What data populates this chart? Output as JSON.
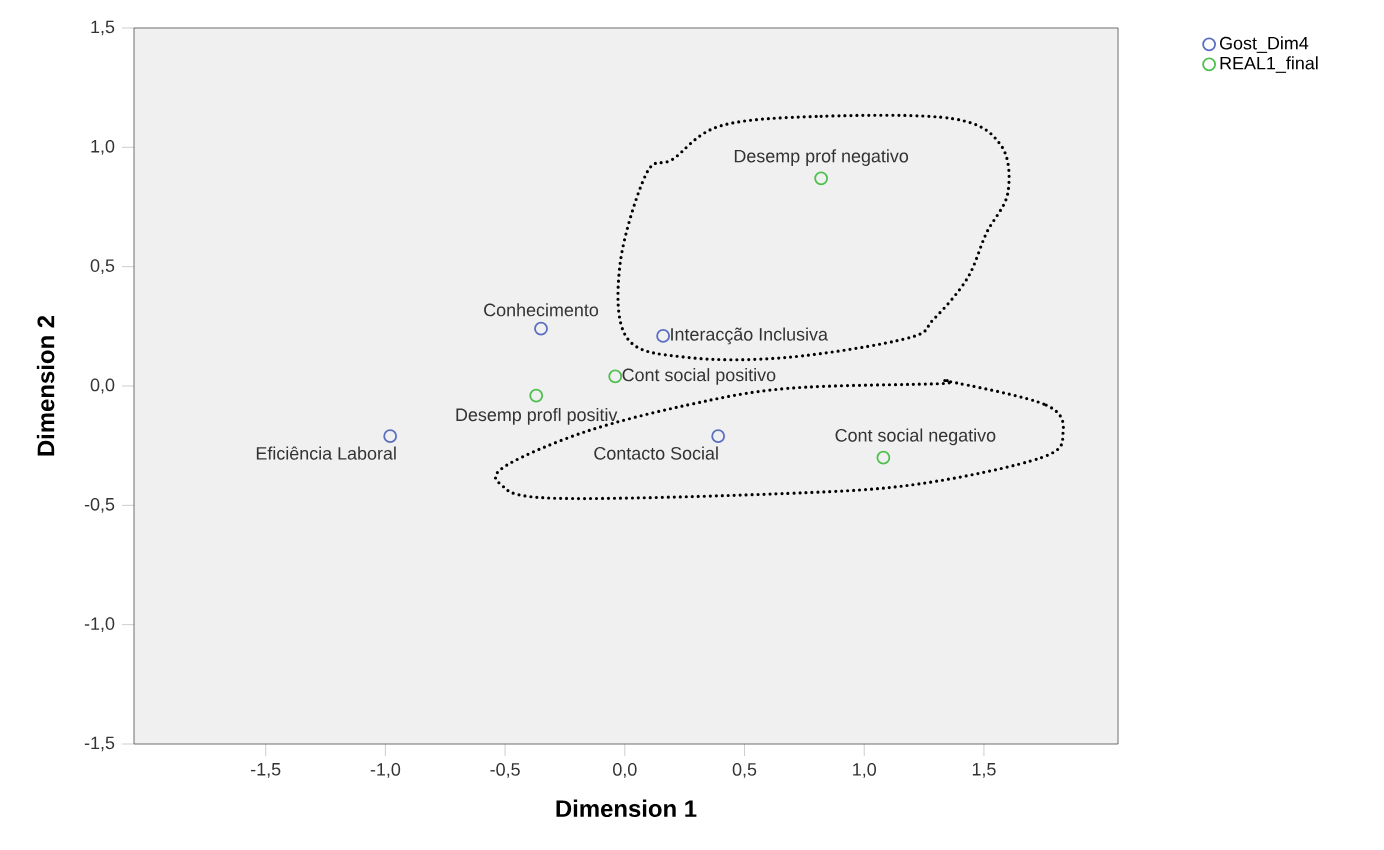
{
  "chart_data": {
    "type": "scatter",
    "xlabel": "Dimension 1",
    "ylabel": "Dimension 2",
    "xlim": [
      -2.05,
      2.06
    ],
    "ylim": [
      -1.5,
      1.5
    ],
    "xticks": [
      {
        "value": -1.5,
        "label": "-1,5"
      },
      {
        "value": -1.0,
        "label": "-1,0"
      },
      {
        "value": -0.5,
        "label": "-0,5"
      },
      {
        "value": 0.0,
        "label": "0,0"
      },
      {
        "value": 0.5,
        "label": "0,5"
      },
      {
        "value": 1.0,
        "label": "1,0"
      },
      {
        "value": 1.5,
        "label": "1,5"
      }
    ],
    "yticks": [
      {
        "value": -1.5,
        "label": "-1,5"
      },
      {
        "value": -1.0,
        "label": "-1,0"
      },
      {
        "value": -0.5,
        "label": "-0,5"
      },
      {
        "value": 0.0,
        "label": "0,0"
      },
      {
        "value": 0.5,
        "label": "0,5"
      },
      {
        "value": 1.0,
        "label": "1,0"
      },
      {
        "value": 1.5,
        "label": "1,5"
      }
    ],
    "series": [
      {
        "name": "Gost_Dim4",
        "color": "#5a6fc0",
        "x": [
          -0.35,
          0.16,
          0.39,
          -0.98
        ],
        "values": [
          0.24,
          0.21,
          -0.21,
          -0.21
        ]
      },
      {
        "name": "REAL1_final",
        "color": "#4fbf4f",
        "x": [
          0.82,
          -0.04,
          -0.37,
          1.08
        ],
        "values": [
          0.87,
          0.04,
          -0.04,
          -0.3
        ]
      }
    ],
    "annotations": [
      {
        "text": "Conhecimento",
        "x": -0.35,
        "y": 0.24
      },
      {
        "text": "Interacção Inclusiva",
        "x": 0.16,
        "y": 0.21
      },
      {
        "text": "Contacto Social",
        "x": 0.39,
        "y": -0.21
      },
      {
        "text": "Eficiência Laboral",
        "x": -0.98,
        "y": -0.21
      },
      {
        "text": "Desemp prof negativo",
        "x": 0.82,
        "y": 0.87
      },
      {
        "text": "Cont social positivo",
        "x": -0.04,
        "y": 0.04
      },
      {
        "text": "Desemp profl positiv",
        "x": -0.37,
        "y": -0.04
      },
      {
        "text": "Cont social negativo",
        "x": 1.08,
        "y": -0.3
      }
    ],
    "marker": "circle",
    "legend": "top right",
    "grid": false
  }
}
